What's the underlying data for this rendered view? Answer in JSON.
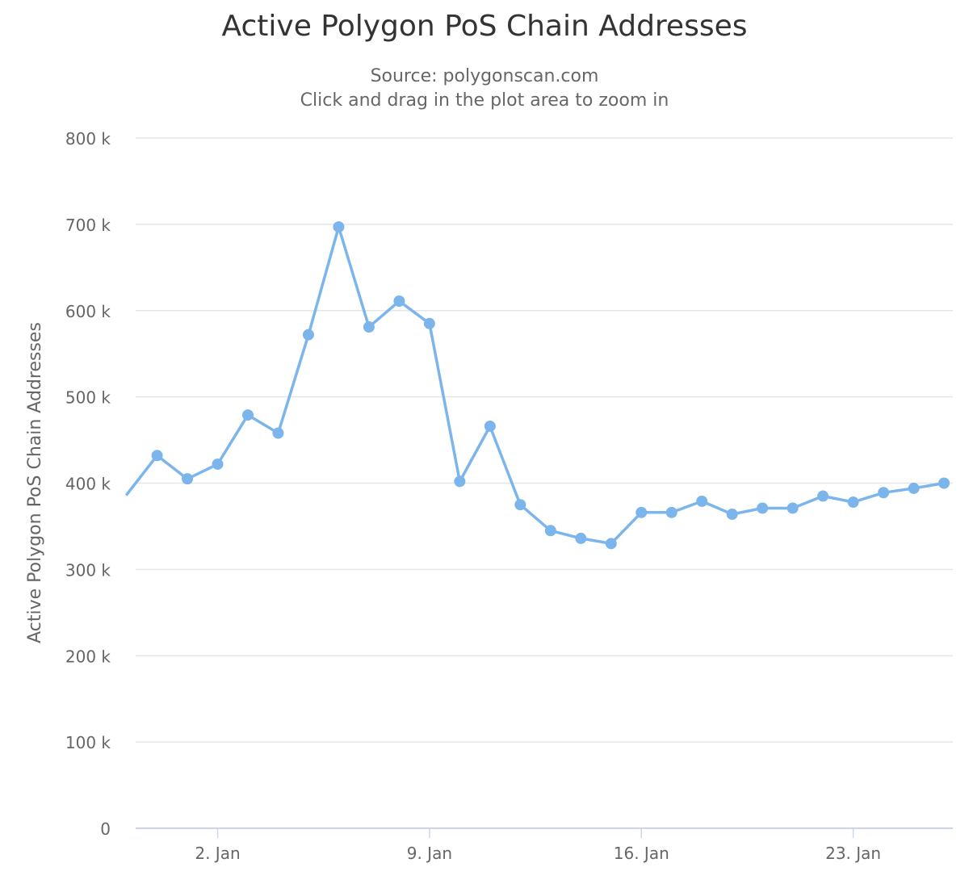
{
  "chart_data": {
    "type": "line",
    "title": "Active Polygon PoS Chain Addresses",
    "subtitle_source": "Source: polygonscan.com",
    "subtitle_hint": "Click and drag in the plot area to zoom in",
    "ylabel": "Active Polygon PoS Chain Addresses",
    "ylim": [
      0,
      800000
    ],
    "yticks": [
      {
        "value": 0,
        "label": "0"
      },
      {
        "value": 100000,
        "label": "100 k"
      },
      {
        "value": 200000,
        "label": "200 k"
      },
      {
        "value": 300000,
        "label": "300 k"
      },
      {
        "value": 400000,
        "label": "400 k"
      },
      {
        "value": 500000,
        "label": "500 k"
      },
      {
        "value": 600000,
        "label": "600 k"
      },
      {
        "value": 700000,
        "label": "700 k"
      },
      {
        "value": 800000,
        "label": "800 k"
      }
    ],
    "xlim": [
      "2021-12-30T07:00",
      "2022-01-26T07:00"
    ],
    "xticks": [
      {
        "date": "2022-01-02",
        "label": "2. Jan"
      },
      {
        "date": "2022-01-09",
        "label": "9. Jan"
      },
      {
        "date": "2022-01-16",
        "label": "16. Jan"
      },
      {
        "date": "2022-01-23",
        "label": "23. Jan"
      }
    ],
    "grid": true,
    "series": [
      {
        "color": "#7cb5ec",
        "points": [
          {
            "x": "2021-12-30",
            "y": 387000
          },
          {
            "x": "2021-12-31",
            "y": 432000
          },
          {
            "x": "2022-01-01",
            "y": 405000
          },
          {
            "x": "2022-01-02",
            "y": 422000
          },
          {
            "x": "2022-01-03",
            "y": 479000
          },
          {
            "x": "2022-01-04",
            "y": 458000
          },
          {
            "x": "2022-01-05",
            "y": 572000
          },
          {
            "x": "2022-01-06",
            "y": 697000
          },
          {
            "x": "2022-01-07",
            "y": 581000
          },
          {
            "x": "2022-01-08",
            "y": 611000
          },
          {
            "x": "2022-01-09",
            "y": 585000
          },
          {
            "x": "2022-01-10",
            "y": 402000
          },
          {
            "x": "2022-01-11",
            "y": 466000
          },
          {
            "x": "2022-01-12",
            "y": 375000
          },
          {
            "x": "2022-01-13",
            "y": 345000
          },
          {
            "x": "2022-01-14",
            "y": 336000
          },
          {
            "x": "2022-01-15",
            "y": 330000
          },
          {
            "x": "2022-01-16",
            "y": 366000
          },
          {
            "x": "2022-01-17",
            "y": 366000
          },
          {
            "x": "2022-01-18",
            "y": 379000
          },
          {
            "x": "2022-01-19",
            "y": 364000
          },
          {
            "x": "2022-01-20",
            "y": 371000
          },
          {
            "x": "2022-01-21",
            "y": 371000
          },
          {
            "x": "2022-01-22",
            "y": 385000
          },
          {
            "x": "2022-01-23",
            "y": 378000
          },
          {
            "x": "2022-01-24",
            "y": 389000
          },
          {
            "x": "2022-01-25",
            "y": 394000
          },
          {
            "x": "2022-01-26",
            "y": 400000
          }
        ]
      }
    ]
  }
}
